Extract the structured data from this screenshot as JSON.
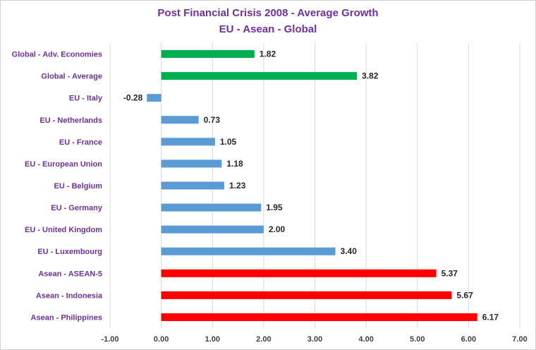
{
  "chart_data": {
    "type": "bar",
    "orientation": "horizontal",
    "title": "Post Financial Crisis 2008 - Average Growth",
    "subtitle": "EU - Asean - Global",
    "categories": [
      "Global - Adv. Economies",
      "Global - Average",
      "EU - Italy",
      "EU - Netherlands",
      "EU - France",
      "EU - European Union",
      "EU - Belgium",
      "EU - Germany",
      "EU - United Kingdom",
      "EU - Luxembourg",
      "Asean - ASEAN-5",
      "Asean - Indonesia",
      "Asean - Philippines"
    ],
    "values": [
      1.82,
      3.82,
      -0.28,
      0.73,
      1.05,
      1.18,
      1.23,
      1.95,
      2.0,
      3.4,
      5.37,
      5.67,
      6.17
    ],
    "value_labels": [
      "1.82",
      "3.82",
      "-0.28",
      "0.73",
      "1.05",
      "1.18",
      "1.23",
      "1.95",
      "2.00",
      "3.40",
      "5.37",
      "5.67",
      "6.17"
    ],
    "bar_colors": [
      "#00b050",
      "#00b050",
      "#5b9bd5",
      "#5b9bd5",
      "#5b9bd5",
      "#5b9bd5",
      "#5b9bd5",
      "#5b9bd5",
      "#5b9bd5",
      "#5b9bd5",
      "#ff0000",
      "#ff0000",
      "#ff0000"
    ],
    "xlim": [
      -1,
      7
    ],
    "x_ticks": [
      -1,
      0,
      1,
      2,
      3,
      4,
      5,
      6,
      7
    ],
    "x_tick_labels": [
      "-1.00",
      "0.00",
      "1.00",
      "2.00",
      "3.00",
      "4.00",
      "5.00",
      "6.00",
      "7.00"
    ],
    "xlabel": "",
    "ylabel": "",
    "grid": "vertical",
    "legend": "none"
  },
  "colors": {
    "title": "#7030a0",
    "category_label": "#7030a0",
    "value_label": "#262626",
    "gridline": "#d9d9d9"
  }
}
